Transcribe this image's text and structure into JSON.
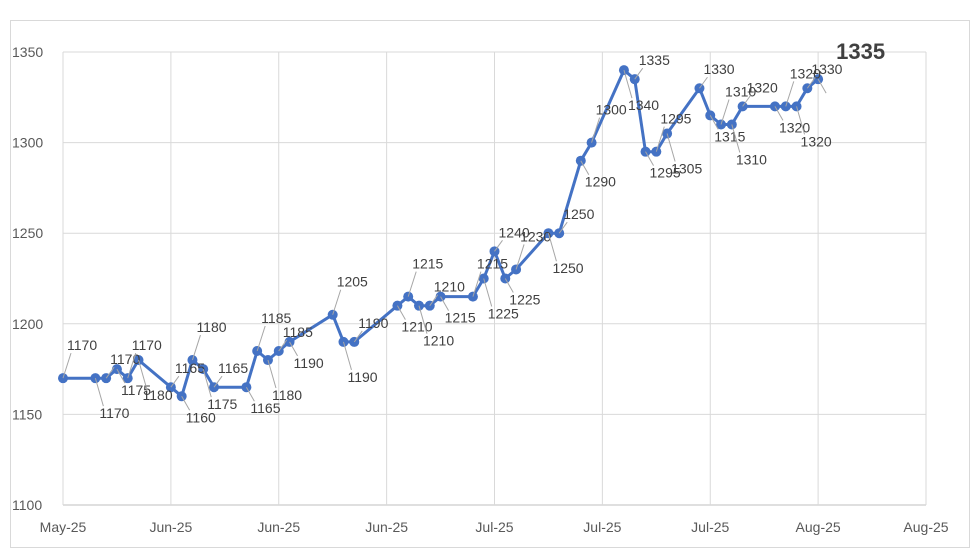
{
  "chart_data": {
    "type": "line",
    "title": "",
    "xlabel": "",
    "ylabel": "",
    "ylim": [
      1100,
      1350
    ],
    "yticks": [
      1100,
      1150,
      1200,
      1250,
      1300,
      1350
    ],
    "xlim": [
      "2025-05-23",
      "2025-08-11"
    ],
    "xtick_labels": [
      "May-25",
      "Jun-25",
      "Jun-25",
      "Jun-25",
      "Jul-25",
      "Jul-25",
      "Jul-25",
      "Aug-25",
      "Aug-25"
    ],
    "xtick_interval_days": 10,
    "grid": true,
    "legend": "none",
    "line_color": "#4472C4",
    "marker": "circle",
    "data_labels": true,
    "x": [
      "2025-05-23",
      "2025-05-26",
      "2025-05-27",
      "2025-05-28",
      "2025-05-29",
      "2025-05-30",
      "2025-06-02",
      "2025-06-03",
      "2025-06-04",
      "2025-06-05",
      "2025-06-06",
      "2025-06-09",
      "2025-06-10",
      "2025-06-11",
      "2025-06-12",
      "2025-06-13",
      "2025-06-17",
      "2025-06-18",
      "2025-06-19",
      "2025-06-23",
      "2025-06-24",
      "2025-06-25",
      "2025-06-26",
      "2025-06-27",
      "2025-06-30",
      "2025-07-01",
      "2025-07-02",
      "2025-07-03",
      "2025-07-04",
      "2025-07-07",
      "2025-07-08",
      "2025-07-10",
      "2025-07-11",
      "2025-07-14",
      "2025-07-15",
      "2025-07-16",
      "2025-07-17",
      "2025-07-18",
      "2025-07-21",
      "2025-07-22",
      "2025-07-23",
      "2025-07-24",
      "2025-07-25",
      "2025-07-28",
      "2025-07-29",
      "2025-07-30",
      "2025-07-31",
      "2025-08-01"
    ],
    "values": [
      1170,
      1170,
      1170,
      1175,
      1170,
      1180,
      1165,
      1160,
      1180,
      1175,
      1165,
      1165,
      1185,
      1180,
      1185,
      1190,
      1205,
      1190,
      1190,
      1210,
      1215,
      1210,
      1210,
      1215,
      1215,
      1225,
      1240,
      1225,
      1230,
      1250,
      1250,
      1290,
      1300,
      1340,
      1335,
      1295,
      1295,
      1305,
      1330,
      1315,
      1310,
      1310,
      1320,
      1320,
      1320,
      1320,
      1330,
      1335
    ]
  }
}
